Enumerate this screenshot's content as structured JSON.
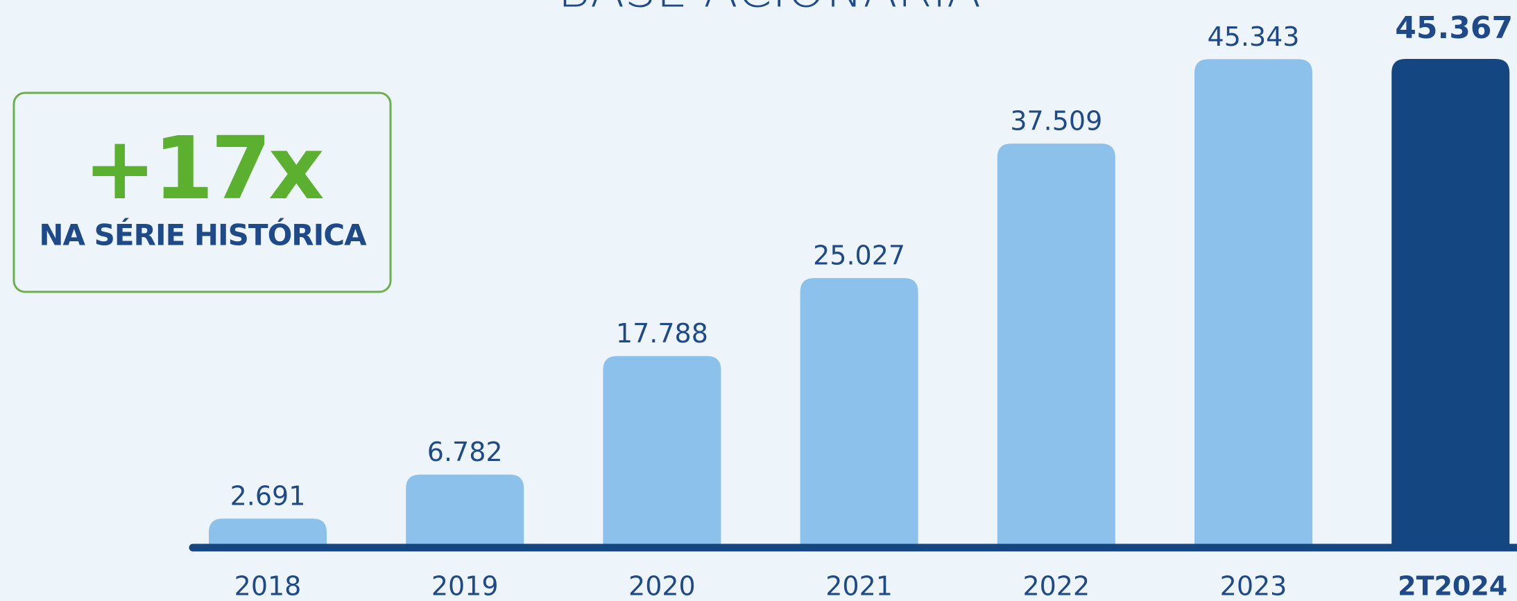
{
  "chart_data": {
    "type": "bar",
    "title": "BASE ACIONÁRIA",
    "categories": [
      "2018",
      "2019",
      "2020",
      "2021",
      "2022",
      "2023",
      "2T2024"
    ],
    "values": [
      2691,
      6782,
      17788,
      25027,
      37509,
      45343,
      45367
    ],
    "value_labels": [
      "2.691",
      "6.782",
      "17.788",
      "25.027",
      "37.509",
      "45.343",
      "45.367"
    ],
    "color": "#8bc1ea",
    "highlight": {
      "index": 6,
      "color": "#144682"
    },
    "annotations": [
      "+17x",
      "NA SÉRIE HISTÓRICA"
    ]
  }
}
